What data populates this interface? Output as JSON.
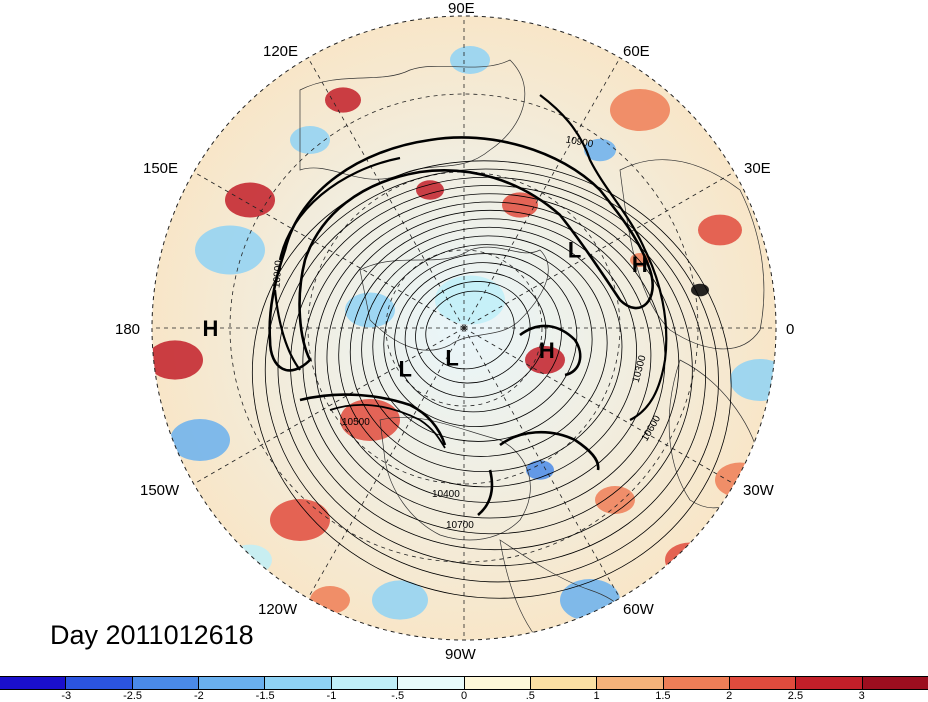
{
  "title": "Day 2011012618",
  "longitude_labels": [
    "90E",
    "60E",
    "30E",
    "0",
    "30W",
    "60W",
    "90W",
    "120W",
    "150W",
    "180",
    "150E",
    "120E"
  ],
  "contour_labels": [
    "10900",
    "10900",
    "10500",
    "10400",
    "10700",
    "10300",
    "10600"
  ],
  "pressure_centers": [
    {
      "label": "L",
      "lat": 55,
      "lon": 35
    },
    {
      "label": "H",
      "lat": 42,
      "lon": 20
    },
    {
      "label": "H",
      "lat": 25,
      "lon": 180
    },
    {
      "label": "L",
      "lat": 72,
      "lon": -145
    },
    {
      "label": "L",
      "lat": 82,
      "lon": -110
    },
    {
      "label": "H",
      "lat": 68,
      "lon": -15
    }
  ],
  "colorbar": {
    "colors": [
      "#1a0fcc",
      "#2b54e0",
      "#4a8ae8",
      "#6ab0ee",
      "#8fd2f4",
      "#c0eff8",
      "#e8fbfb",
      "#fdf7d8",
      "#fbe0a4",
      "#f5b27a",
      "#ee7e57",
      "#e04b3d",
      "#c21f29",
      "#9c0e1f"
    ],
    "tick_labels": [
      "-3",
      "-2.5",
      "-2",
      "-1.5",
      "-1",
      "-.5",
      "0",
      ".5",
      "1",
      "1.5",
      "2",
      "2.5",
      "3"
    ]
  }
}
